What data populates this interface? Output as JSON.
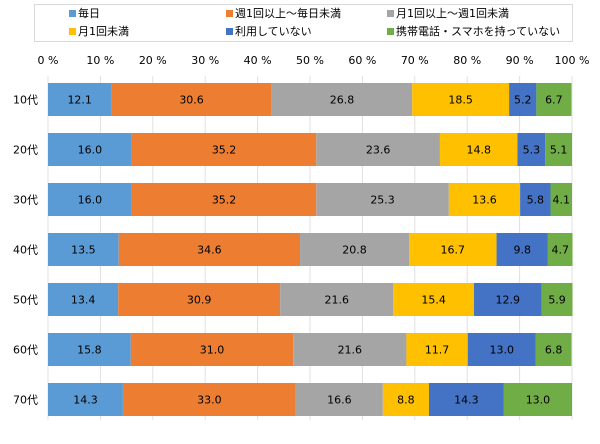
{
  "chart_data": {
    "type": "bar",
    "orientation": "horizontal",
    "stacked": true,
    "percent": true,
    "title": "",
    "xlabel": "",
    "ylabel": "",
    "xlim": [
      0,
      100
    ],
    "x_ticks": [
      "0 %",
      "10 %",
      "20 %",
      "30 %",
      "40 %",
      "50 %",
      "60 %",
      "70 %",
      "80 %",
      "90 %",
      "100 %"
    ],
    "x_tick_values": [
      0,
      10,
      20,
      30,
      40,
      50,
      60,
      70,
      80,
      90,
      100
    ],
    "x_axis_position": "top",
    "grid": true,
    "legend_position": "top",
    "categories": [
      "10代",
      "20代",
      "30代",
      "40代",
      "50代",
      "60代",
      "70代"
    ],
    "series": [
      {
        "name": "毎日",
        "color": "#5b9bd5",
        "values": [
          12.1,
          16.0,
          16.0,
          13.5,
          13.4,
          15.8,
          14.3
        ]
      },
      {
        "name": "週1回以上～毎日未満",
        "color": "#ed7d31",
        "values": [
          30.6,
          35.2,
          35.2,
          34.6,
          30.9,
          31.0,
          33.0
        ]
      },
      {
        "name": "月1回以上～週1回未満",
        "color": "#a5a5a5",
        "values": [
          26.8,
          23.6,
          25.3,
          20.8,
          21.6,
          21.6,
          16.6
        ]
      },
      {
        "name": "月1回未満",
        "color": "#ffc000",
        "values": [
          18.5,
          14.8,
          13.6,
          16.7,
          15.4,
          11.7,
          8.8
        ]
      },
      {
        "name": "利用していない",
        "color": "#4472c4",
        "values": [
          5.2,
          5.3,
          5.8,
          9.8,
          12.9,
          13.0,
          14.3
        ]
      },
      {
        "name": "携帯電話・スマホを持っていない",
        "color": "#70ad47",
        "values": [
          6.7,
          5.1,
          4.1,
          4.7,
          5.9,
          6.8,
          13.0
        ]
      }
    ],
    "data_labels": [
      [
        "12.1",
        "30.6",
        "26.8",
        "18.5",
        "5.2",
        "6.7"
      ],
      [
        "16.0",
        "35.2",
        "23.6",
        "14.8",
        "5.3",
        "5.1"
      ],
      [
        "16.0",
        "35.2",
        "25.3",
        "13.6",
        "5.8",
        "4.1"
      ],
      [
        "13.5",
        "34.6",
        "20.8",
        "16.7",
        "9.8",
        "4.7"
      ],
      [
        "13.4",
        "30.9",
        "21.6",
        "15.4",
        "12.9",
        "5.9"
      ],
      [
        "15.8",
        "31.0",
        "21.6",
        "11.7",
        "13.0",
        "6.8"
      ],
      [
        "14.3",
        "33.0",
        "16.6",
        "8.8",
        "14.3",
        "13.0"
      ]
    ]
  }
}
